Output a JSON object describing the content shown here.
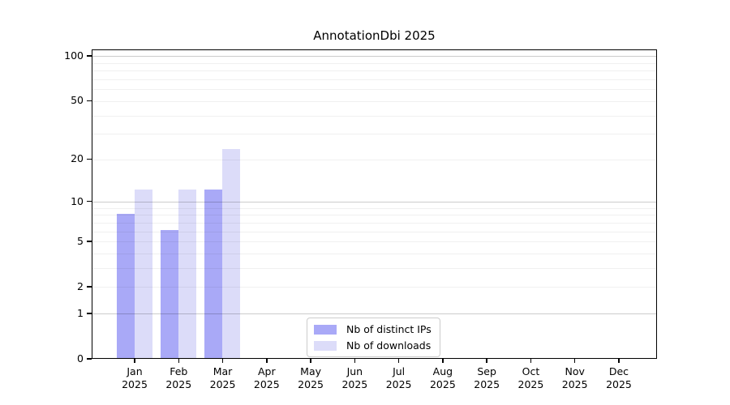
{
  "title": "AnnotationDbi 2025",
  "colors": {
    "bar_distinct_ips": "#a9a9f7",
    "bar_downloads": "#dcdcf9",
    "grid_major": "rgba(0,0,0,0.20)",
    "grid_minor": "rgba(0,0,0,0.06)",
    "axis": "#000000",
    "legend_border": "#cccccc",
    "text": "#000000"
  },
  "legend": {
    "items": [
      {
        "label": "Nb of distinct IPs"
      },
      {
        "label": "Nb of downloads"
      }
    ]
  },
  "chart_data": {
    "type": "bar",
    "title": "AnnotationDbi 2025",
    "categories": [
      "Jan",
      "Feb",
      "Mar",
      "Apr",
      "May",
      "Jun",
      "Jul",
      "Aug",
      "Sep",
      "Oct",
      "Nov",
      "Dec"
    ],
    "category_sublabel": "2025",
    "series": [
      {
        "name": "Nb of distinct IPs",
        "color": "#a9a9f7",
        "values": [
          8,
          6,
          12,
          0,
          0,
          0,
          0,
          0,
          0,
          0,
          0,
          0
        ]
      },
      {
        "name": "Nb of downloads",
        "color": "#dcdcf9",
        "values": [
          12,
          12,
          23,
          0,
          0,
          0,
          0,
          0,
          0,
          0,
          0,
          0
        ]
      }
    ],
    "yscale": "log10(1+y)",
    "ylim": [
      0,
      110
    ],
    "yticks": [
      0,
      1,
      2,
      5,
      10,
      20,
      50,
      100
    ],
    "major_gridlines": [
      1,
      10,
      100
    ],
    "minor_gridlines": [
      2,
      3,
      4,
      5,
      6,
      7,
      8,
      9,
      20,
      30,
      40,
      50,
      60,
      70,
      80,
      90
    ],
    "grid": "horizontal only",
    "legend_position": "bottom-center inside plot"
  }
}
